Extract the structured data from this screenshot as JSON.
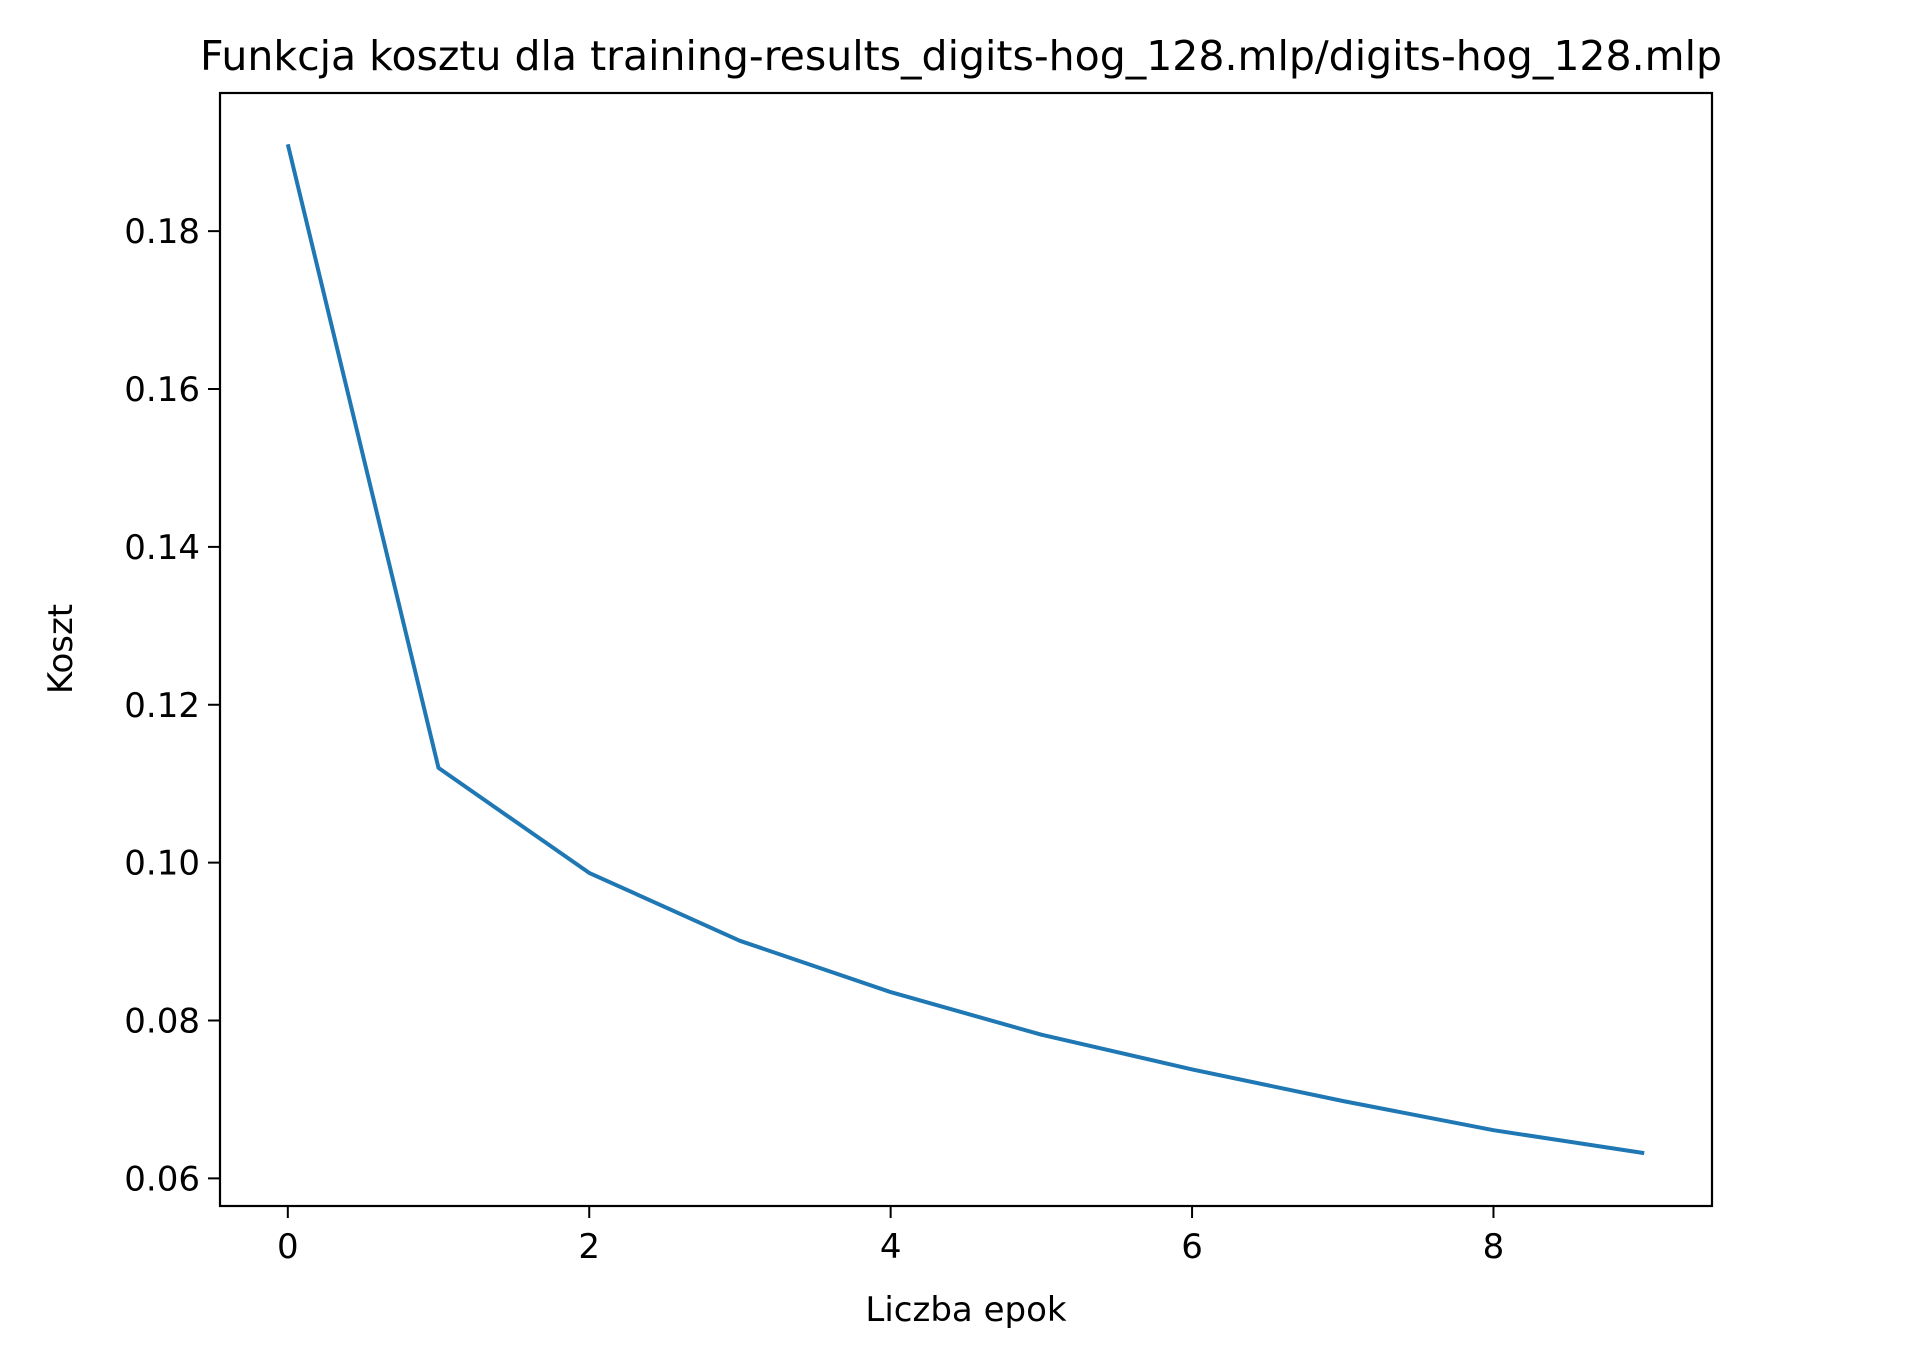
{
  "chart_data": {
    "type": "line",
    "title": "Funkcja kosztu dla training-results_digits-hog_128.mlp/digits-hog_128.mlp",
    "xlabel": "Liczba epok",
    "ylabel": "Koszt",
    "xlim": [
      -0.45,
      9.45
    ],
    "ylim": [
      0.0565,
      0.1975
    ],
    "xticks": [
      0,
      2,
      4,
      6,
      8
    ],
    "xtick_labels": [
      "0",
      "2",
      "4",
      "6",
      "8"
    ],
    "yticks": [
      0.06,
      0.08,
      0.1,
      0.12,
      0.14,
      0.16,
      0.18
    ],
    "ytick_labels": [
      "0.06",
      "0.08",
      "0.10",
      "0.12",
      "0.14",
      "0.16",
      "0.18"
    ],
    "grid": false,
    "legend": "none",
    "series": [
      {
        "color": "#1f77b4",
        "x": [
          0,
          1,
          2,
          3,
          4,
          5,
          6,
          7,
          8,
          9
        ],
        "y": [
          0.191,
          0.112,
          0.0987,
          0.0901,
          0.0836,
          0.0782,
          0.0738,
          0.0698,
          0.0661,
          0.0632
        ]
      }
    ]
  }
}
